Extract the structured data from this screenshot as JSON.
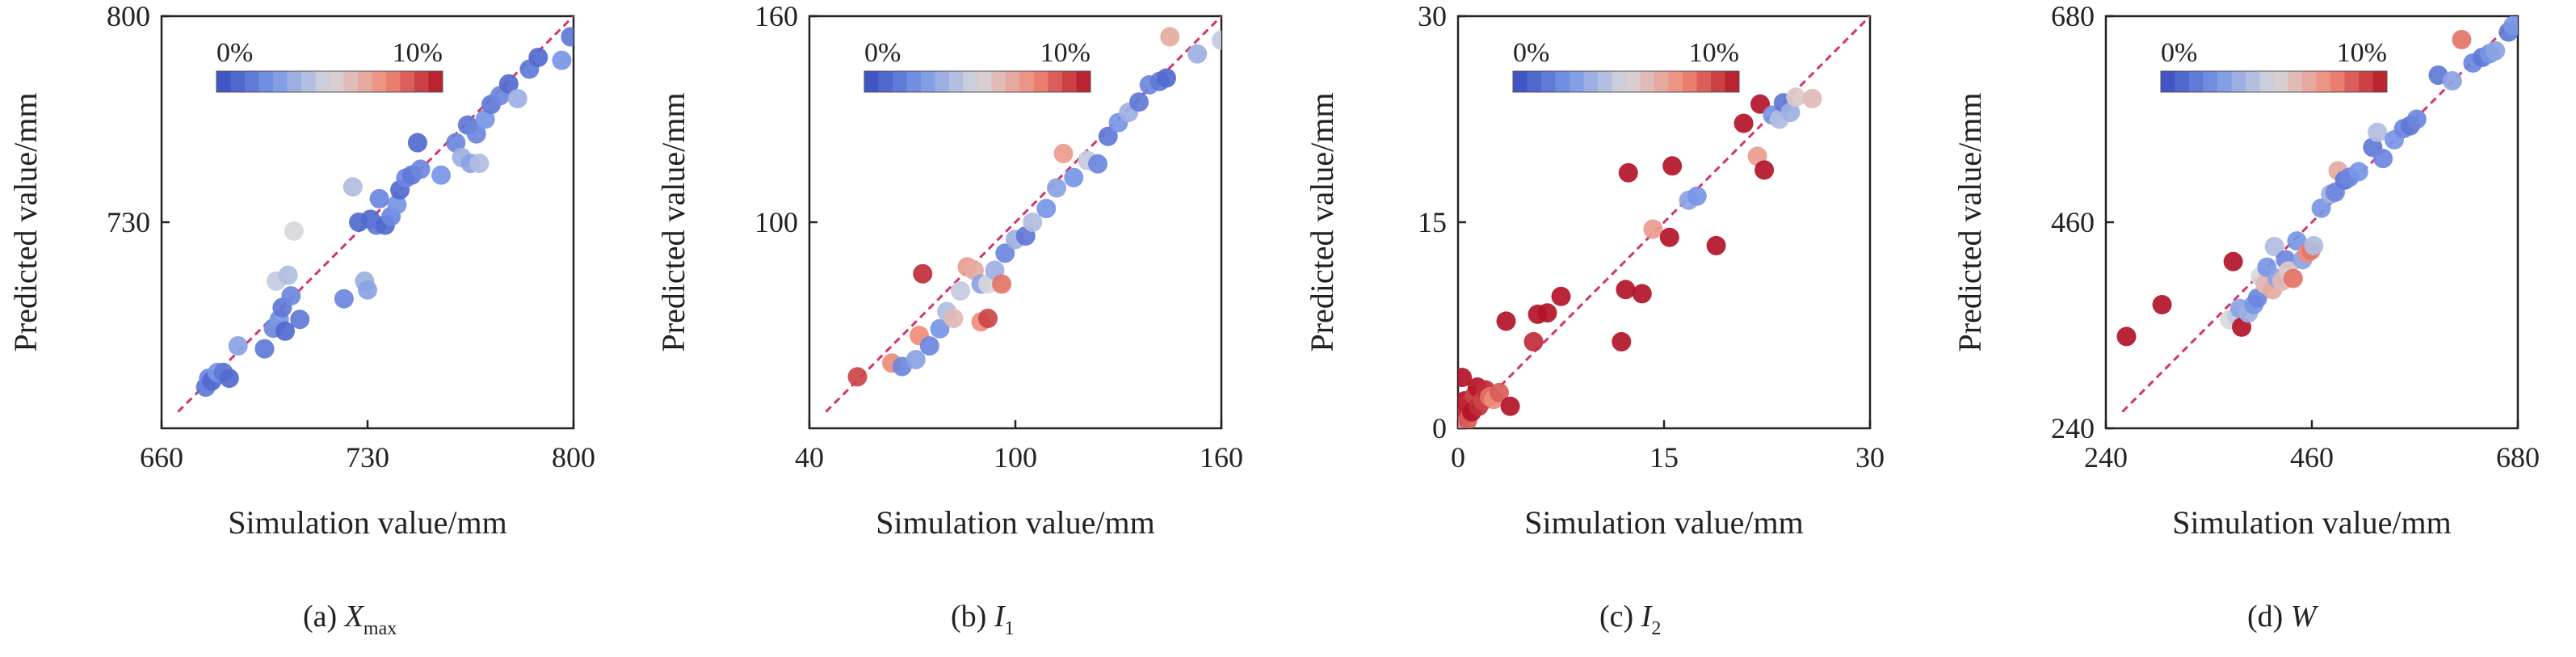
{
  "chart_data": [
    {
      "type": "scatter",
      "caption": "(a) ",
      "caption_var": "X",
      "caption_sub": "max",
      "xlabel": "Simulation value/mm",
      "ylabel": "Predicted value/mm",
      "xlim": [
        660,
        800
      ],
      "ylim": [
        660,
        800
      ],
      "xticks": [
        "660",
        "730",
        "800"
      ],
      "yticks": [
        "730",
        "800"
      ],
      "colorbar": {
        "min_label": "0%",
        "max_label": "10%"
      },
      "reference_line": "y = x",
      "points": [
        {
          "x": 675,
          "y": 674,
          "err": 1.5
        },
        {
          "x": 676,
          "y": 677,
          "err": 2.0
        },
        {
          "x": 677,
          "y": 676,
          "err": 1.0
        },
        {
          "x": 679,
          "y": 679,
          "err": 2.5
        },
        {
          "x": 681,
          "y": 679,
          "err": 1.5
        },
        {
          "x": 683,
          "y": 677,
          "err": 1.0
        },
        {
          "x": 686,
          "y": 688,
          "err": 3.0
        },
        {
          "x": 695,
          "y": 687,
          "err": 1.5
        },
        {
          "x": 698,
          "y": 694,
          "err": 2.0
        },
        {
          "x": 699,
          "y": 710,
          "err": 4.5
        },
        {
          "x": 700,
          "y": 697,
          "err": 2.5
        },
        {
          "x": 701,
          "y": 701,
          "err": 1.5
        },
        {
          "x": 702,
          "y": 693,
          "err": 1.0
        },
        {
          "x": 703,
          "y": 712,
          "err": 4.0
        },
        {
          "x": 704,
          "y": 705,
          "err": 2.0
        },
        {
          "x": 705,
          "y": 727,
          "err": 5.0
        },
        {
          "x": 707,
          "y": 697,
          "err": 1.5
        },
        {
          "x": 722,
          "y": 704,
          "err": 2.0
        },
        {
          "x": 725,
          "y": 742,
          "err": 4.0
        },
        {
          "x": 727,
          "y": 730,
          "err": 1.0
        },
        {
          "x": 729,
          "y": 710,
          "err": 3.5
        },
        {
          "x": 730,
          "y": 707,
          "err": 3.0
        },
        {
          "x": 731,
          "y": 731,
          "err": 1.0
        },
        {
          "x": 733,
          "y": 729,
          "err": 1.5
        },
        {
          "x": 734,
          "y": 738,
          "err": 2.0
        },
        {
          "x": 736,
          "y": 729,
          "err": 1.0
        },
        {
          "x": 738,
          "y": 732,
          "err": 2.0
        },
        {
          "x": 740,
          "y": 736,
          "err": 2.5
        },
        {
          "x": 741,
          "y": 741,
          "err": 1.0
        },
        {
          "x": 743,
          "y": 745,
          "err": 2.0
        },
        {
          "x": 745,
          "y": 746,
          "err": 1.5
        },
        {
          "x": 747,
          "y": 757,
          "err": 1.0
        },
        {
          "x": 748,
          "y": 748,
          "err": 2.0
        },
        {
          "x": 755,
          "y": 746,
          "err": 2.5
        },
        {
          "x": 760,
          "y": 757,
          "err": 2.0
        },
        {
          "x": 762,
          "y": 752,
          "err": 3.5
        },
        {
          "x": 764,
          "y": 763,
          "err": 1.5
        },
        {
          "x": 765,
          "y": 750,
          "err": 3.0
        },
        {
          "x": 767,
          "y": 760,
          "err": 2.0
        },
        {
          "x": 768,
          "y": 750,
          "err": 4.0
        },
        {
          "x": 770,
          "y": 765,
          "err": 2.5
        },
        {
          "x": 772,
          "y": 770,
          "err": 1.5
        },
        {
          "x": 775,
          "y": 773,
          "err": 2.0
        },
        {
          "x": 778,
          "y": 777,
          "err": 1.0
        },
        {
          "x": 781,
          "y": 772,
          "err": 3.5
        },
        {
          "x": 785,
          "y": 782,
          "err": 1.5
        },
        {
          "x": 788,
          "y": 786,
          "err": 1.0
        },
        {
          "x": 796,
          "y": 785,
          "err": 2.5
        },
        {
          "x": 799,
          "y": 793,
          "err": 1.5
        }
      ]
    },
    {
      "type": "scatter",
      "caption": "(b) ",
      "caption_var": "I",
      "caption_sub": "1",
      "xlabel": "Simulation value/mm",
      "ylabel": "Predicted value/mm",
      "xlim": [
        40,
        160
      ],
      "ylim": [
        40,
        160
      ],
      "xticks": [
        "40",
        "100",
        "160"
      ],
      "yticks": [
        "100",
        "160"
      ],
      "colorbar": {
        "min_label": "0%",
        "max_label": "10%"
      },
      "reference_line": "y = x",
      "points": [
        {
          "x": 54,
          "y": 55,
          "err": 9.0
        },
        {
          "x": 64,
          "y": 59,
          "err": 7.5
        },
        {
          "x": 67,
          "y": 58,
          "err": 2.0
        },
        {
          "x": 71,
          "y": 60,
          "err": 3.0
        },
        {
          "x": 72,
          "y": 67,
          "err": 7.5
        },
        {
          "x": 73,
          "y": 85,
          "err": 9.5
        },
        {
          "x": 75,
          "y": 64,
          "err": 2.0
        },
        {
          "x": 78,
          "y": 69,
          "err": 2.5
        },
        {
          "x": 80,
          "y": 74,
          "err": 4.0
        },
        {
          "x": 82,
          "y": 72,
          "err": 6.0
        },
        {
          "x": 84,
          "y": 80,
          "err": 4.5
        },
        {
          "x": 86,
          "y": 87,
          "err": 7.0
        },
        {
          "x": 88,
          "y": 86,
          "err": 6.5
        },
        {
          "x": 90,
          "y": 82,
          "err": 3.0
        },
        {
          "x": 90,
          "y": 71,
          "err": 7.5
        },
        {
          "x": 92,
          "y": 82,
          "err": 5.0
        },
        {
          "x": 92,
          "y": 72,
          "err": 9.0
        },
        {
          "x": 94,
          "y": 86,
          "err": 3.5
        },
        {
          "x": 96,
          "y": 82,
          "err": 8.0
        },
        {
          "x": 97,
          "y": 91,
          "err": 2.0
        },
        {
          "x": 100,
          "y": 95,
          "err": 3.5
        },
        {
          "x": 103,
          "y": 96,
          "err": 1.5
        },
        {
          "x": 105,
          "y": 100,
          "err": 4.0
        },
        {
          "x": 109,
          "y": 104,
          "err": 2.5
        },
        {
          "x": 112,
          "y": 110,
          "err": 3.0
        },
        {
          "x": 114,
          "y": 120,
          "err": 7.0
        },
        {
          "x": 117,
          "y": 113,
          "err": 2.5
        },
        {
          "x": 121,
          "y": 118,
          "err": 4.5
        },
        {
          "x": 124,
          "y": 117,
          "err": 2.0
        },
        {
          "x": 127,
          "y": 125,
          "err": 1.5
        },
        {
          "x": 130,
          "y": 129,
          "err": 2.5
        },
        {
          "x": 133,
          "y": 132,
          "err": 3.5
        },
        {
          "x": 136,
          "y": 135,
          "err": 1.5
        },
        {
          "x": 139,
          "y": 140,
          "err": 2.0
        },
        {
          "x": 142,
          "y": 141,
          "err": 1.5
        },
        {
          "x": 144,
          "y": 142,
          "err": 1.0
        },
        {
          "x": 145,
          "y": 154,
          "err": 6.5
        },
        {
          "x": 153,
          "y": 149,
          "err": 3.5
        },
        {
          "x": 160,
          "y": 153,
          "err": 4.5
        }
      ]
    },
    {
      "type": "scatter",
      "caption": "(c) ",
      "caption_var": "I",
      "caption_sub": "2",
      "xlabel": "Simulation value/mm",
      "ylabel": "Predicted value/mm",
      "xlim": [
        0,
        30
      ],
      "ylim": [
        0,
        30
      ],
      "xticks": [
        "0",
        "15",
        "30"
      ],
      "yticks": [
        "0",
        "15",
        "30"
      ],
      "colorbar": {
        "min_label": "0%",
        "max_label": "10%"
      },
      "reference_line": "y = x",
      "points": [
        {
          "x": 0.1,
          "y": 0.2,
          "err": 3.0
        },
        {
          "x": 0.2,
          "y": 0.8,
          "err": 8.0
        },
        {
          "x": 0.3,
          "y": 1.4,
          "err": 9.0
        },
        {
          "x": 0.3,
          "y": 3.7,
          "err": 10.0
        },
        {
          "x": 0.5,
          "y": 1.0,
          "err": 9.5
        },
        {
          "x": 0.5,
          "y": 2.0,
          "err": 10.0
        },
        {
          "x": 0.7,
          "y": 0.6,
          "err": 8.5
        },
        {
          "x": 0.8,
          "y": 1.8,
          "err": 9.5
        },
        {
          "x": 1.0,
          "y": 1.2,
          "err": 10.0
        },
        {
          "x": 1.2,
          "y": 2.4,
          "err": 9.0
        },
        {
          "x": 1.4,
          "y": 3.0,
          "err": 10.0
        },
        {
          "x": 1.5,
          "y": 1.6,
          "err": 9.5
        },
        {
          "x": 1.8,
          "y": 2.0,
          "err": 9.0
        },
        {
          "x": 2.0,
          "y": 2.8,
          "err": 9.5
        },
        {
          "x": 2.3,
          "y": 2.3,
          "err": 8.0
        },
        {
          "x": 2.6,
          "y": 2.1,
          "err": 7.5
        },
        {
          "x": 3.0,
          "y": 2.6,
          "err": 8.5
        },
        {
          "x": 3.5,
          "y": 7.8,
          "err": 10.0
        },
        {
          "x": 3.8,
          "y": 1.6,
          "err": 10.0
        },
        {
          "x": 5.5,
          "y": 6.3,
          "err": 9.5
        },
        {
          "x": 5.8,
          "y": 8.3,
          "err": 10.0
        },
        {
          "x": 6.5,
          "y": 8.4,
          "err": 10.0
        },
        {
          "x": 7.5,
          "y": 9.6,
          "err": 10.0
        },
        {
          "x": 11.9,
          "y": 6.3,
          "err": 10.0
        },
        {
          "x": 12.2,
          "y": 10.1,
          "err": 10.0
        },
        {
          "x": 12.4,
          "y": 18.6,
          "err": 10.0
        },
        {
          "x": 13.4,
          "y": 9.8,
          "err": 10.0
        },
        {
          "x": 14.2,
          "y": 14.5,
          "err": 7.0
        },
        {
          "x": 15.4,
          "y": 13.9,
          "err": 10.0
        },
        {
          "x": 15.6,
          "y": 19.1,
          "err": 10.0
        },
        {
          "x": 16.8,
          "y": 16.6,
          "err": 3.0
        },
        {
          "x": 17.4,
          "y": 16.9,
          "err": 2.5
        },
        {
          "x": 18.8,
          "y": 13.3,
          "err": 10.0
        },
        {
          "x": 20.8,
          "y": 22.2,
          "err": 10.0
        },
        {
          "x": 21.8,
          "y": 19.8,
          "err": 7.0
        },
        {
          "x": 22.0,
          "y": 23.6,
          "err": 10.0
        },
        {
          "x": 22.3,
          "y": 18.8,
          "err": 10.0
        },
        {
          "x": 22.9,
          "y": 22.8,
          "err": 2.5
        },
        {
          "x": 23.4,
          "y": 22.5,
          "err": 4.0
        },
        {
          "x": 23.7,
          "y": 23.7,
          "err": 1.5
        },
        {
          "x": 24.2,
          "y": 23.0,
          "err": 3.5
        },
        {
          "x": 24.6,
          "y": 24.1,
          "err": 5.5
        },
        {
          "x": 25.8,
          "y": 24.0,
          "err": 6.0
        }
      ]
    },
    {
      "type": "scatter",
      "caption": "(d) ",
      "caption_var": "W",
      "caption_sub": "",
      "xlabel": "Simulation value/mm",
      "ylabel": "Predicted value/mm",
      "xlim": [
        240,
        680
      ],
      "ylim": [
        240,
        680
      ],
      "xticks": [
        "240",
        "460",
        "680"
      ],
      "yticks": [
        "240",
        "460",
        "680"
      ],
      "colorbar": {
        "min_label": "0%",
        "max_label": "10%"
      },
      "reference_line": "y = x",
      "points": [
        {
          "x": 262,
          "y": 338,
          "err": 10.0
        },
        {
          "x": 300,
          "y": 372,
          "err": 10.0
        },
        {
          "x": 372,
          "y": 356,
          "err": 5.0
        },
        {
          "x": 376,
          "y": 418,
          "err": 10.0
        },
        {
          "x": 380,
          "y": 360,
          "err": 4.5
        },
        {
          "x": 383,
          "y": 368,
          "err": 3.0
        },
        {
          "x": 385,
          "y": 348,
          "err": 10.0
        },
        {
          "x": 392,
          "y": 363,
          "err": 3.5
        },
        {
          "x": 398,
          "y": 372,
          "err": 2.5
        },
        {
          "x": 402,
          "y": 379,
          "err": 2.0
        },
        {
          "x": 405,
          "y": 402,
          "err": 5.0
        },
        {
          "x": 410,
          "y": 394,
          "err": 6.0
        },
        {
          "x": 412,
          "y": 412,
          "err": 2.5
        },
        {
          "x": 418,
          "y": 388,
          "err": 6.5
        },
        {
          "x": 420,
          "y": 434,
          "err": 4.0
        },
        {
          "x": 423,
          "y": 400,
          "err": 3.0
        },
        {
          "x": 428,
          "y": 397,
          "err": 6.0
        },
        {
          "x": 432,
          "y": 420,
          "err": 2.0
        },
        {
          "x": 435,
          "y": 408,
          "err": 5.5
        },
        {
          "x": 440,
          "y": 400,
          "err": 8.0
        },
        {
          "x": 444,
          "y": 440,
          "err": 2.5
        },
        {
          "x": 450,
          "y": 420,
          "err": 3.0
        },
        {
          "x": 455,
          "y": 427,
          "err": 7.5
        },
        {
          "x": 459,
          "y": 430,
          "err": 8.0
        },
        {
          "x": 462,
          "y": 435,
          "err": 4.0
        },
        {
          "x": 470,
          "y": 475,
          "err": 2.5
        },
        {
          "x": 480,
          "y": 490,
          "err": 3.5
        },
        {
          "x": 485,
          "y": 492,
          "err": 2.0
        },
        {
          "x": 488,
          "y": 515,
          "err": 6.5
        },
        {
          "x": 495,
          "y": 505,
          "err": 1.5
        },
        {
          "x": 500,
          "y": 508,
          "err": 2.0
        },
        {
          "x": 510,
          "y": 514,
          "err": 2.5
        },
        {
          "x": 525,
          "y": 540,
          "err": 1.5
        },
        {
          "x": 530,
          "y": 556,
          "err": 4.0
        },
        {
          "x": 536,
          "y": 528,
          "err": 2.0
        },
        {
          "x": 548,
          "y": 548,
          "err": 2.5
        },
        {
          "x": 558,
          "y": 560,
          "err": 2.0
        },
        {
          "x": 565,
          "y": 563,
          "err": 1.5
        },
        {
          "x": 572,
          "y": 570,
          "err": 2.0
        },
        {
          "x": 595,
          "y": 617,
          "err": 1.5
        },
        {
          "x": 610,
          "y": 611,
          "err": 3.0
        },
        {
          "x": 620,
          "y": 655,
          "err": 8.0
        },
        {
          "x": 632,
          "y": 630,
          "err": 2.0
        },
        {
          "x": 642,
          "y": 636,
          "err": 1.5
        },
        {
          "x": 650,
          "y": 640,
          "err": 2.5
        },
        {
          "x": 656,
          "y": 643,
          "err": 3.0
        },
        {
          "x": 670,
          "y": 663,
          "err": 1.5
        },
        {
          "x": 675,
          "y": 670,
          "err": 2.5
        }
      ]
    }
  ]
}
